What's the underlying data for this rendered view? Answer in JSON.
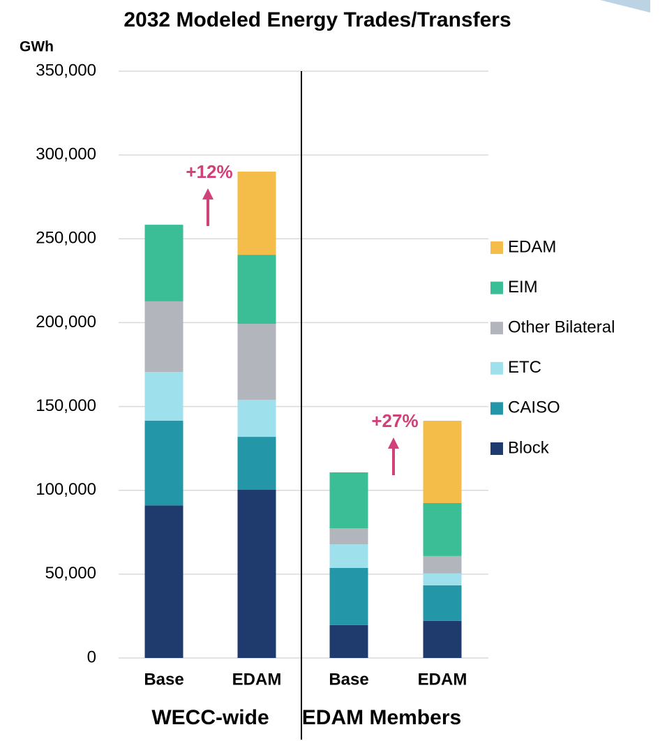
{
  "chart_data": {
    "type": "stacked_bar",
    "title": "2032 Modeled Energy Trades/Transfers",
    "y_label": "GWh",
    "categories": [
      "Base",
      "EDAM",
      "Base",
      "EDAM"
    ],
    "groups": [
      {
        "label": "WECC-wide",
        "span": [
          0,
          1
        ]
      },
      {
        "label": "EDAM Members",
        "span": [
          2,
          3
        ]
      }
    ],
    "series": [
      {
        "name": "Block",
        "color": "#1f3b6e",
        "values": [
          91000,
          100300,
          19600,
          22100
        ]
      },
      {
        "name": "CAISO",
        "color": "#2397a8",
        "values": [
          50500,
          31600,
          34100,
          21200
        ]
      },
      {
        "name": "ETC",
        "color": "#9ee0ec",
        "values": [
          29100,
          22100,
          14100,
          7100
        ]
      },
      {
        "name": "Other Bilateral",
        "color": "#b2b6bc",
        "values": [
          42100,
          45300,
          9600,
          10400
        ]
      },
      {
        "name": "EIM",
        "color": "#3bbd96",
        "values": [
          45700,
          41200,
          33300,
          31600
        ]
      },
      {
        "name": "EDAM",
        "color": "#f4bd49",
        "values": [
          0,
          49600,
          0,
          49100
        ]
      }
    ],
    "annotations": [
      {
        "text": "+12%",
        "category": 1
      },
      {
        "text": "+27%",
        "category": 3
      }
    ],
    "ylim": [
      0,
      350000
    ],
    "yticks": [
      0,
      {
        "value": 50000,
        "label": "50,000"
      },
      {
        "value": 100000,
        "label": "100,000"
      },
      {
        "value": 150000,
        "label": "150,000"
      },
      {
        "value": 200000,
        "label": "200,000"
      },
      {
        "value": 250000,
        "label": "250,000"
      },
      {
        "value": 300000,
        "label": "300,000"
      },
      {
        "value": 350000,
        "label": "350,000"
      }
    ],
    "grid": true,
    "legend": "right"
  }
}
